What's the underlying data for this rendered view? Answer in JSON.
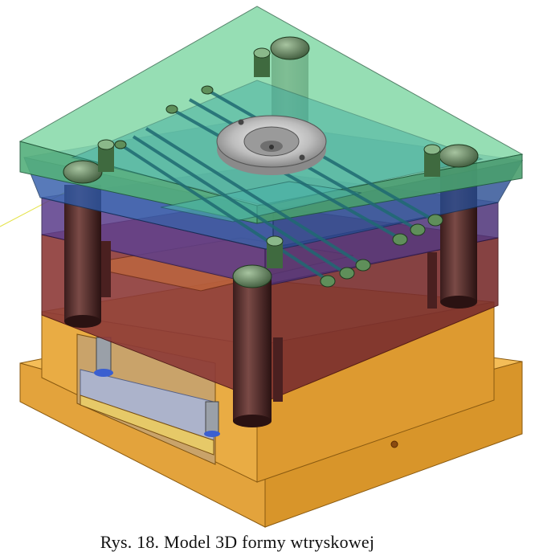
{
  "caption": "Rys. 18. Model 3D formy wtryskowej",
  "colors": {
    "base_top": "#f2b64a",
    "base_left": "#e0a034",
    "base_right": "#d18f27",
    "clamp_plate": "#f0b04a",
    "ejector_plate": "#9fb0d8",
    "cavity_plate": "#a4383a",
    "core_plate": "#6a3d7c",
    "runner_plate": "#3d6fb0",
    "top_plate": "#6fcf97",
    "guide_pillar": "#5e6e5a",
    "sprue_bushing": "#c8c8c8",
    "cooling_fitting": "#4a7a4a"
  }
}
